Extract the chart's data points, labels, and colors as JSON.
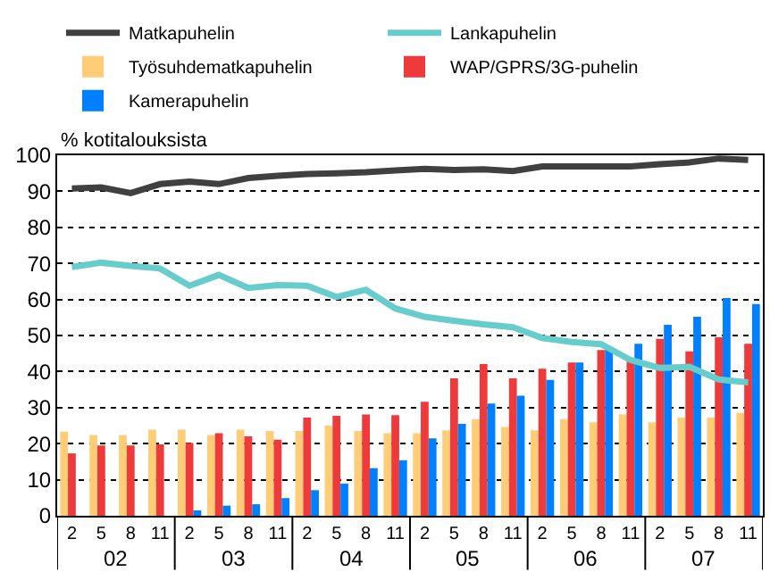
{
  "chart_data": {
    "type": "bar",
    "ylabel": "% kotitalouksista",
    "categories": [
      "2",
      "5",
      "8",
      "11",
      "2",
      "5",
      "8",
      "11",
      "2",
      "5",
      "8",
      "11",
      "2",
      "5",
      "8",
      "11",
      "2",
      "5",
      "8",
      "11",
      "2",
      "5",
      "8",
      "11"
    ],
    "annotations": [
      "02",
      "03",
      "04",
      "05",
      "06",
      "07"
    ],
    "series": [
      {
        "name": "Matkapuhelin",
        "type": "line",
        "color": "#404040",
        "values": [
          90.8,
          91.1,
          89.5,
          92.0,
          92.7,
          92.0,
          93.7,
          94.3,
          94.8,
          95.0,
          95.3,
          95.8,
          96.2,
          95.9,
          96.1,
          95.6,
          96.9,
          96.9,
          96.9,
          96.9,
          97.5,
          98.0,
          99.1,
          98.7
        ]
      },
      {
        "name": "Lankapuhelin",
        "type": "line",
        "color": "#66cccc",
        "values": [
          69.0,
          70.2,
          69.3,
          68.6,
          63.8,
          66.8,
          63.2,
          64.0,
          63.8,
          60.7,
          62.7,
          57.5,
          55.2,
          54.1,
          53.1,
          52.3,
          49.3,
          48.2,
          47.6,
          43.2,
          41.0,
          41.3,
          37.8,
          37.0
        ]
      },
      {
        "name": "Työsuhdematkapuhelin",
        "color": "#ffcc77",
        "values": [
          23.3,
          22.4,
          22.4,
          23.9,
          23.9,
          22.4,
          23.9,
          23.5,
          23.5,
          25.0,
          23.5,
          22.9,
          22.9,
          23.7,
          26.8,
          24.6,
          23.7,
          26.8,
          25.9,
          28.1,
          25.9,
          27.2,
          27.2,
          28.5
        ]
      },
      {
        "name": "WAP/GPRS/3G-puhelin",
        "color": "#ee3a3a",
        "values": [
          17.3,
          19.5,
          19.5,
          19.8,
          20.2,
          22.9,
          22.0,
          21.1,
          27.2,
          27.7,
          28.1,
          27.9,
          31.6,
          38.1,
          42.1,
          38.1,
          40.8,
          42.5,
          46.0,
          42.9,
          49.1,
          45.6,
          49.5,
          47.7
        ]
      },
      {
        "name": "Kamerapuhelin",
        "color": "#0080ff",
        "values": [
          null,
          null,
          null,
          null,
          1.5,
          2.8,
          3.2,
          4.9,
          7.1,
          8.9,
          13.2,
          15.4,
          21.5,
          25.5,
          31.1,
          33.3,
          37.7,
          42.5,
          46.4,
          47.7,
          53.0,
          55.2,
          60.4,
          58.7
        ]
      }
    ],
    "ylim": [
      0,
      100
    ],
    "yticks": [
      0,
      10,
      20,
      30,
      40,
      50,
      60,
      70,
      80,
      90,
      100
    ],
    "grid": "y",
    "legend": "top",
    "line_style": "solid",
    "marker": "none"
  }
}
